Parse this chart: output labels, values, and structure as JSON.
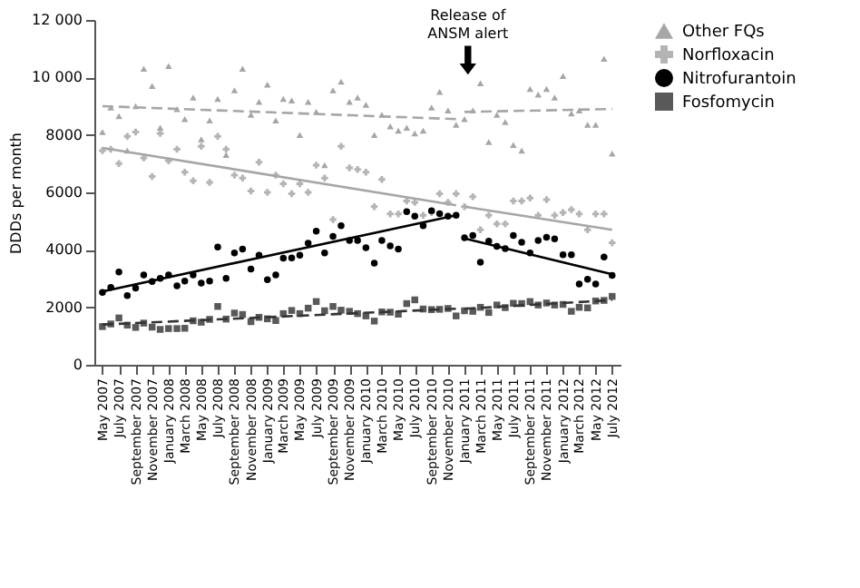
{
  "chart_data": {
    "type": "scatter",
    "ylabel": "DDDs per month",
    "annotations": [
      "Release of\nANSM alert"
    ],
    "xlim": [
      "2007-04",
      "2012-08"
    ],
    "xticks": [
      {
        "value": "2007-05",
        "label": "May 2007"
      },
      {
        "value": "2007-07",
        "label": "July 2007"
      },
      {
        "value": "2007-09",
        "label": "September 2007"
      },
      {
        "value": "2007-11",
        "label": "November 2007"
      },
      {
        "value": "2008-01",
        "label": "January 2008"
      },
      {
        "value": "2008-03",
        "label": "March 2008"
      },
      {
        "value": "2008-05",
        "label": "May 2008"
      },
      {
        "value": "2008-07",
        "label": "July 2008"
      },
      {
        "value": "2008-09",
        "label": "September 2008"
      },
      {
        "value": "2008-11",
        "label": "November 2008"
      },
      {
        "value": "2009-01",
        "label": "January 2009"
      },
      {
        "value": "2009-03",
        "label": "March 2009"
      },
      {
        "value": "2009-05",
        "label": "May 2009"
      },
      {
        "value": "2009-07",
        "label": "July 2009"
      },
      {
        "value": "2009-09",
        "label": "September 2009"
      },
      {
        "value": "2009-11",
        "label": "November 2009"
      },
      {
        "value": "2010-01",
        "label": "January 2010"
      },
      {
        "value": "2010-03",
        "label": "March 2010"
      },
      {
        "value": "2010-05",
        "label": "May 2010"
      },
      {
        "value": "2010-07",
        "label": "July 2010"
      },
      {
        "value": "2010-09",
        "label": "September 2010"
      },
      {
        "value": "2010-11",
        "label": "November 2010"
      },
      {
        "value": "2011-01",
        "label": "January 2011"
      },
      {
        "value": "2011-03",
        "label": "March 2011"
      },
      {
        "value": "2011-05",
        "label": "May 2011"
      },
      {
        "value": "2011-07",
        "label": "July 2011"
      },
      {
        "value": "2011-09",
        "label": "September 2011"
      },
      {
        "value": "2011-11",
        "label": "November 2011"
      },
      {
        "value": "2012-01",
        "label": "January 2012"
      },
      {
        "value": "2012-03",
        "label": "March 2012"
      },
      {
        "value": "2012-05",
        "label": "May 2012"
      },
      {
        "value": "2012-07",
        "label": "July 2012"
      }
    ],
    "ylim": [
      0,
      12000
    ],
    "yticks": [
      0,
      2000,
      4000,
      6000,
      8000,
      {
        "value": 10000,
        "label": "10 000"
      },
      {
        "value": 12000,
        "label": "12 000"
      }
    ],
    "legend": "right",
    "grid": false,
    "x": [
      "2007-05",
      "2007-06",
      "2007-07",
      "2007-08",
      "2007-09",
      "2007-10",
      "2007-11",
      "2007-12",
      "2008-01",
      "2008-02",
      "2008-03",
      "2008-04",
      "2008-05",
      "2008-06",
      "2008-07",
      "2008-08",
      "2008-09",
      "2008-10",
      "2008-11",
      "2008-12",
      "2009-01",
      "2009-02",
      "2009-03",
      "2009-04",
      "2009-05",
      "2009-06",
      "2009-07",
      "2009-08",
      "2009-09",
      "2009-10",
      "2009-11",
      "2009-12",
      "2010-01",
      "2010-02",
      "2010-03",
      "2010-04",
      "2010-05",
      "2010-06",
      "2010-07",
      "2010-08",
      "2010-09",
      "2010-10",
      "2010-11",
      "2010-12",
      "2011-01",
      "2011-02",
      "2011-03",
      "2011-04",
      "2011-05",
      "2011-06",
      "2011-07",
      "2011-08",
      "2011-09",
      "2011-10",
      "2011-11",
      "2011-12",
      "2012-01",
      "2012-02",
      "2012-03",
      "2012-04",
      "2012-05",
      "2012-06",
      "2012-07"
    ],
    "series": [
      {
        "name": "Other FQs",
        "type": "scatter",
        "marker": "triangle",
        "color": "#a6a6a6",
        "values": [
          8100,
          8950,
          8650,
          7450,
          9000,
          10300,
          9700,
          8250,
          10400,
          8900,
          8550,
          9300,
          7850,
          8500,
          9250,
          7300,
          9550,
          10300,
          8700,
          9150,
          9750,
          8500,
          9250,
          9200,
          8000,
          9150,
          8800,
          6950,
          9550,
          9850,
          9150,
          9300,
          9050,
          8000,
          8700,
          8300,
          8150,
          8250,
          8050,
          8150,
          8950,
          9500,
          8850,
          8350,
          8550,
          8850,
          9800,
          7750,
          8700,
          8450,
          7650,
          7450,
          9600,
          9400,
          9600,
          9300,
          10050,
          8750,
          8850,
          8350,
          8350,
          10650,
          7350
        ]
      },
      {
        "name": "Norfloxacin",
        "type": "scatter",
        "marker": "cross",
        "color": "#b4b4b4",
        "values": [
          7450,
          7500,
          7000,
          7950,
          8100,
          7200,
          6550,
          8050,
          7100,
          7500,
          6700,
          6400,
          7600,
          6350,
          7950,
          7500,
          6600,
          6500,
          6050,
          7050,
          6000,
          6600,
          6300,
          5950,
          6300,
          6000,
          6950,
          6500,
          5050,
          7600,
          6850,
          6800,
          6700,
          5500,
          6450,
          5250,
          5250,
          5700,
          5650,
          5200,
          5300,
          5950,
          5650,
          5950,
          5500,
          5850,
          4700,
          5200,
          4900,
          4900,
          5700,
          5700,
          5800,
          5200,
          5750,
          5200,
          5300,
          5400,
          5250,
          4700,
          5250,
          5250,
          4250
        ]
      },
      {
        "name": "Nitrofurantoin",
        "type": "scatter",
        "marker": "circle",
        "color": "#000000",
        "values": [
          2520,
          2690,
          3230,
          2410,
          2670,
          3130,
          2900,
          3010,
          3130,
          2750,
          2910,
          3130,
          2840,
          2910,
          4100,
          3010,
          3890,
          4030,
          3330,
          3810,
          2960,
          3130,
          3710,
          3720,
          3810,
          4230,
          4650,
          3890,
          4470,
          4840,
          4330,
          4330,
          4070,
          3540,
          4330,
          4140,
          4030,
          5330,
          5170,
          4840,
          5360,
          5260,
          5170,
          5200,
          4420,
          4500,
          3570,
          4300,
          4120,
          4040,
          4500,
          4260,
          3890,
          4330,
          4440,
          4380,
          3830,
          3830,
          2810,
          2980,
          2810,
          3750,
          3110
        ]
      },
      {
        "name": "Fosfomycin",
        "type": "scatter",
        "marker": "square",
        "color": "#595959",
        "values": [
          1330,
          1420,
          1630,
          1380,
          1300,
          1450,
          1310,
          1230,
          1260,
          1260,
          1270,
          1530,
          1480,
          1580,
          2030,
          1590,
          1800,
          1750,
          1500,
          1650,
          1600,
          1540,
          1780,
          1890,
          1780,
          1970,
          2200,
          1880,
          2030,
          1900,
          1860,
          1780,
          1700,
          1520,
          1840,
          1830,
          1760,
          2130,
          2260,
          1940,
          1920,
          1930,
          1960,
          1700,
          1880,
          1860,
          2000,
          1820,
          2080,
          1990,
          2140,
          2130,
          2200,
          2080,
          2150,
          2080,
          2100,
          1860,
          2000,
          1980,
          2220,
          2240,
          2380
        ]
      },
      {
        "type": "line",
        "line_style": "dashed",
        "color": "#a6a6a6",
        "x": [
          "2007-05",
          "2010-12"
        ],
        "values": [
          9000,
          8550
        ]
      },
      {
        "type": "line",
        "line_style": "dashed",
        "color": "#a6a6a6",
        "x": [
          "2011-01",
          "2012-07"
        ],
        "values": [
          8800,
          8900
        ]
      },
      {
        "type": "line",
        "line_style": "solid",
        "color": "#a6a6a6",
        "x": [
          "2007-05",
          "2010-12"
        ],
        "values": [
          7550,
          5550
        ]
      },
      {
        "type": "line",
        "line_style": "solid",
        "color": "#a6a6a6",
        "x": [
          "2011-01",
          "2012-07"
        ],
        "values": [
          5500,
          4700
        ]
      },
      {
        "type": "line",
        "line_style": "solid",
        "color": "#000000",
        "x": [
          "2007-05",
          "2010-12"
        ],
        "values": [
          2550,
          5200
        ]
      },
      {
        "type": "line",
        "line_style": "solid",
        "color": "#000000",
        "x": [
          "2011-01",
          "2012-07"
        ],
        "values": [
          4400,
          3150
        ]
      },
      {
        "type": "line",
        "line_style": "dashed",
        "color": "#333333",
        "x": [
          "2007-05",
          "2010-12"
        ],
        "values": [
          1400,
          1950
        ]
      },
      {
        "type": "line",
        "line_style": "dashed",
        "color": "#333333",
        "x": [
          "2011-01",
          "2012-07"
        ],
        "values": [
          1950,
          2250
        ]
      }
    ]
  }
}
